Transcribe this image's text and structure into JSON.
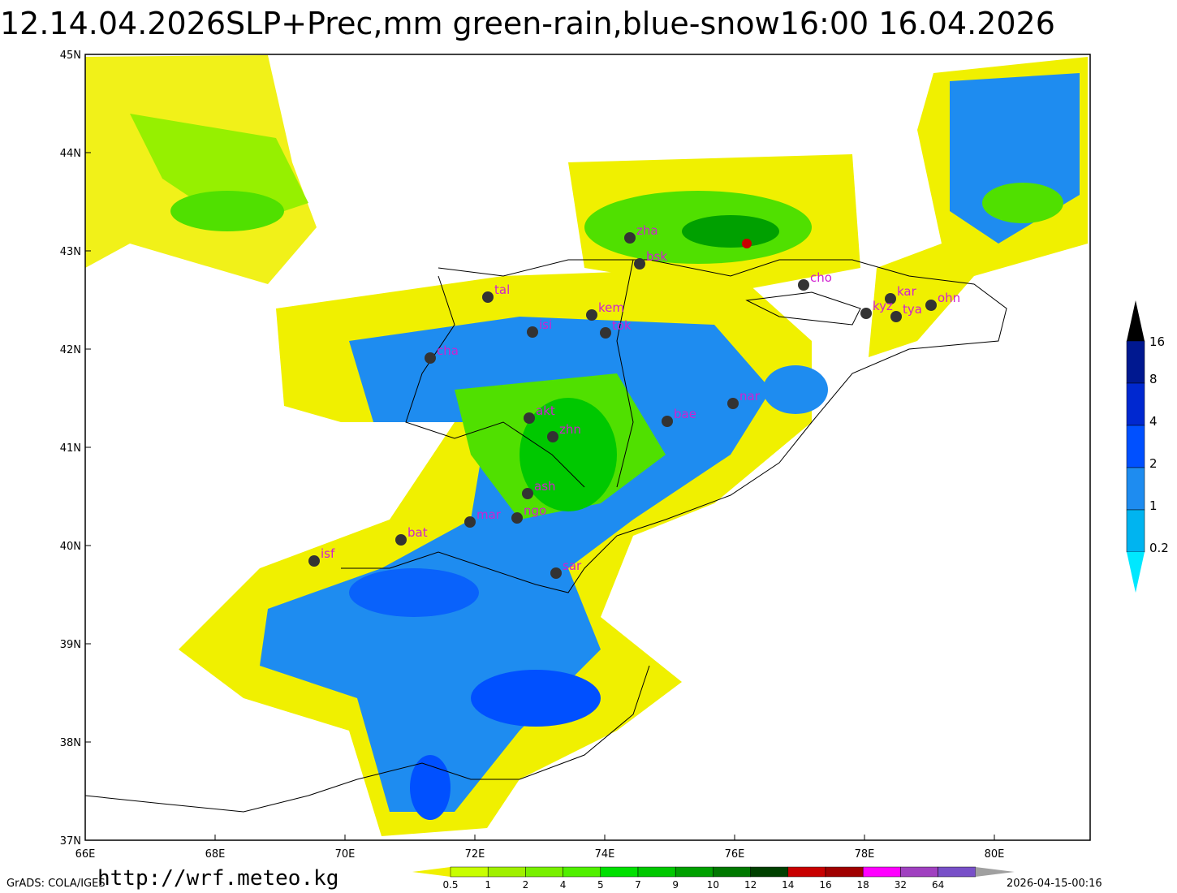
{
  "title": "12.14.04.2026SLP+Prec,mm  green-rain,blue-snow16:00  16.04.2026",
  "lat_labels": [
    "45N",
    "44N",
    "43N",
    "42N",
    "41N",
    "40N",
    "39N",
    "38N",
    "37N"
  ],
  "lon_labels": [
    "66E",
    "68E",
    "70E",
    "72E",
    "74E",
    "76E",
    "78E",
    "80E"
  ],
  "stations": [
    "zha",
    "bsk",
    "tal",
    "kem",
    "tok",
    "isi",
    "cha",
    "cho",
    "kar",
    "kyz",
    "tya",
    "ohn",
    "nar",
    "bae",
    "akt",
    "zhn",
    "ash",
    "mar",
    "ngo",
    "bat",
    "isf",
    "sar"
  ],
  "snow_scale": [
    "16",
    "8",
    "4",
    "2",
    "1",
    "0.2"
  ],
  "rain_scale": [
    "0.5",
    "1",
    "2",
    "4",
    "5",
    "7",
    "9",
    "10",
    "12",
    "14",
    "16",
    "18",
    "32",
    "64"
  ],
  "footer": {
    "left": "GrADS: COLA/IGES",
    "url": "http://wrf.meteo.kg",
    "timestamp": "2026-04-15-00:16"
  }
}
